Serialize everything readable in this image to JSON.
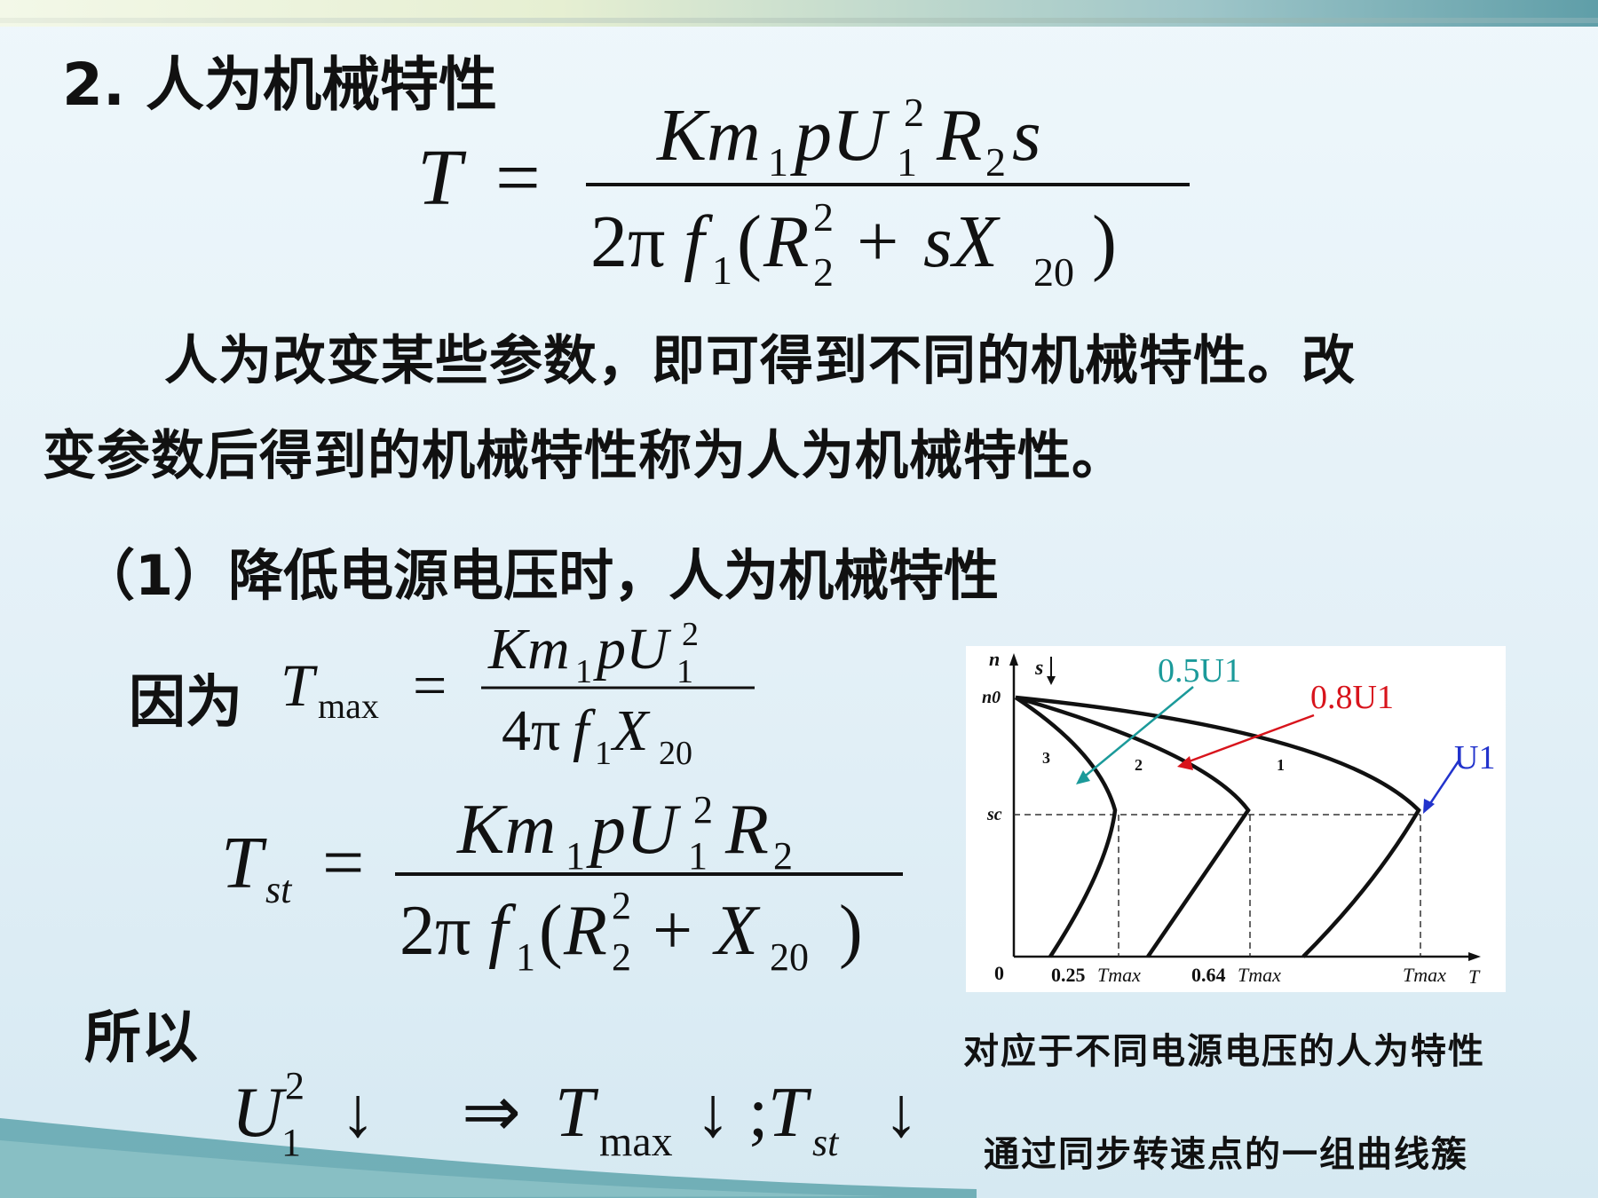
{
  "heading": "2. 人为机械特性",
  "paragraph": {
    "line1": "人为改变某些参数，即可得到不同的机械特性。改",
    "line2": "变参数后得到的机械特性称为人为机械特性。"
  },
  "subheading": "（1）降低电源电压时，人为机械特性",
  "because_label": "因为",
  "therefore_label": "所以",
  "figure": {
    "axis_y": "n",
    "axis_x": "T",
    "s_label": "s",
    "n0_label": "n0",
    "sc_label": "sc",
    "origin_label": "0",
    "tick_025": "0.25",
    "tick_064": "0.64",
    "tmax_label": "Tmax",
    "curve_labels": [
      "1",
      "2",
      "3"
    ],
    "voltage_labels": {
      "half": "0.5U1",
      "eighty": "0.8U1",
      "full": "U1"
    },
    "voltage_colors": {
      "half": "#1b9a9a",
      "eighty": "#d8141c",
      "full": "#2233cc"
    }
  },
  "caption": {
    "line1": "对应于不同电源电压的人为特性",
    "line2": "通过同步转速点的一组曲线簇"
  }
}
